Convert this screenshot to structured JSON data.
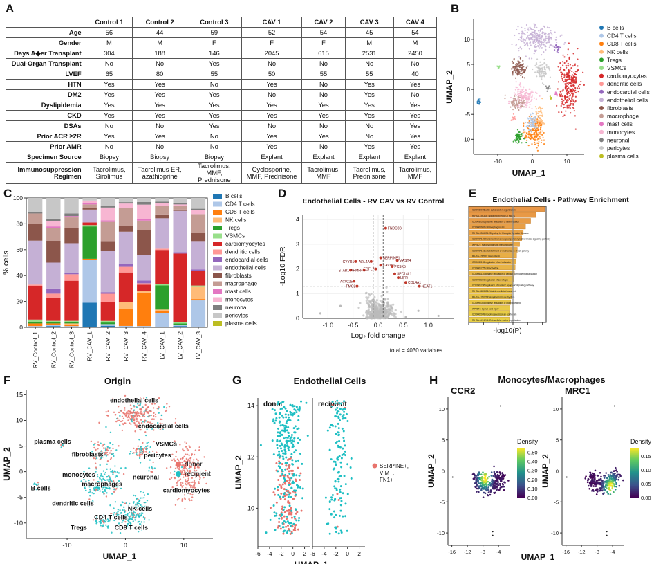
{
  "panels": {
    "A": "A",
    "B": "B",
    "C": "C",
    "D": "D",
    "E": "E",
    "F": "F",
    "G": "G",
    "H": "H"
  },
  "table": {
    "columns": [
      "",
      "Control 1",
      "Control 2",
      "Control 3",
      "CAV 1",
      "CAV 2",
      "CAV 3",
      "CAV 4"
    ],
    "rows": [
      {
        "label": "Age",
        "cells": [
          "56",
          "44",
          "59",
          "52",
          "54",
          "45",
          "54"
        ]
      },
      {
        "label": "Gender",
        "cells": [
          "M",
          "M",
          "F",
          "F",
          "F",
          "M",
          "M"
        ]
      },
      {
        "label": "Days A◆er Transplant",
        "cells": [
          "304",
          "188",
          "146",
          "2045",
          "615",
          "2531",
          "2450"
        ]
      },
      {
        "label": "Dual-Organ Transplant",
        "cells": [
          "No",
          "No",
          "Yes",
          "No",
          "No",
          "No",
          "No"
        ]
      },
      {
        "label": "LVEF",
        "cells": [
          "65",
          "80",
          "55",
          "50",
          "55",
          "55",
          "40"
        ]
      },
      {
        "label": "HTN",
        "cells": [
          "Yes",
          "Yes",
          "No",
          "Yes",
          "No",
          "Yes",
          "Yes"
        ]
      },
      {
        "label": "DM2",
        "cells": [
          "Yes",
          "Yes",
          "Yes",
          "No",
          "No",
          "Yes",
          "No"
        ]
      },
      {
        "label": "Dyslipidemia",
        "cells": [
          "Yes",
          "Yes",
          "Yes",
          "Yes",
          "Yes",
          "Yes",
          "Yes"
        ]
      },
      {
        "label": "CKD",
        "cells": [
          "Yes",
          "Yes",
          "Yes",
          "Yes",
          "Yes",
          "Yes",
          "Yes"
        ]
      },
      {
        "label": "DSAs",
        "cells": [
          "No",
          "No",
          "Yes",
          "No",
          "No",
          "No",
          "Yes"
        ]
      },
      {
        "label": "Prior ACR ≥2R",
        "cells": [
          "Yes",
          "Yes",
          "No",
          "Yes",
          "Yes",
          "No",
          "Yes"
        ]
      },
      {
        "label": "Prior AMR",
        "cells": [
          "No",
          "No",
          "No",
          "Yes",
          "No",
          "Yes",
          "Yes"
        ]
      },
      {
        "label": "Specimen Source",
        "cells": [
          "Biopsy",
          "Biopsy",
          "Biopsy",
          "Explant",
          "Explant",
          "Explant",
          "Explant"
        ]
      },
      {
        "label": "Immunosuppression Regimen",
        "cells": [
          "Tacrolimus, Sirolimus",
          "Tacrolimus ER, azathioprine",
          "Tacrolimus, MMF, Prednisone",
          "Cyclosporine, MMF, Prednisone",
          "Tacrolimus, MMF",
          "Tacrolimus, Prednisone",
          "Tacrolimus, MMF"
        ]
      }
    ]
  },
  "colors": {
    "B cells": "#1f77b4",
    "CD4 T cells": "#aec7e8",
    "CD8 T cells": "#ff7f0e",
    "NK cells": "#ffbb78",
    "Tregs": "#2ca02c",
    "VSMCs": "#98df8a",
    "cardiomyocytes": "#d62728",
    "dendritic cells": "#ff9896",
    "endocardial cells": "#9467bd",
    "endothelial cells": "#c5b0d5",
    "fibroblasts": "#8c564b",
    "macrophage": "#c49c94",
    "mast cells": "#e377c2",
    "monocytes": "#f7b6d2",
    "neuronal": "#7f7f7f",
    "pericytes": "#c7c7c7",
    "plasma cells": "#bcbd22",
    "donor": "#e8736c",
    "recipient": "#1fbfc3"
  },
  "chart_data": [
    {
      "id": "B",
      "type": "scatter",
      "xlabel": "UMAP_1",
      "ylabel": "UMAP_2",
      "xticks": [
        -10,
        0,
        10
      ],
      "yticks": [
        -10,
        -5,
        0,
        5,
        10
      ],
      "xlim": [
        -17,
        15
      ],
      "ylim": [
        -13,
        14
      ],
      "legend": [
        "B cells",
        "CD4 T cells",
        "CD8 T cells",
        "NK cells",
        "Tregs",
        "VSMCs",
        "cardiomyocytes",
        "dendritic cells",
        "endocardial cells",
        "endothelial cells",
        "fibroblasts",
        "macrophage",
        "mast cells",
        "monocytes",
        "neuronal",
        "pericytes",
        "plasma cells"
      ],
      "clusters": [
        {
          "cat": "endothelial cells",
          "x": 1.5,
          "y": 10.2,
          "sx": 2.8,
          "sy": 1.3,
          "n": 260
        },
        {
          "cat": "endocardial cells",
          "x": 7,
          "y": 8.2,
          "sx": 0.4,
          "sy": 0.4,
          "n": 20
        },
        {
          "cat": "fibroblasts",
          "x": -4,
          "y": 4,
          "sx": 1.1,
          "sy": 0.9,
          "n": 90
        },
        {
          "cat": "pericytes",
          "x": 2.5,
          "y": 4,
          "sx": 1.1,
          "sy": 0.9,
          "n": 80
        },
        {
          "cat": "VSMCs",
          "x": -9.8,
          "y": 4.6,
          "sx": 0.2,
          "sy": 0.3,
          "n": 8
        },
        {
          "cat": "cardiomyocytes",
          "x": 10.5,
          "y": 1,
          "sx": 1.4,
          "sy": 2.8,
          "n": 280
        },
        {
          "cat": "monocytes",
          "x": -2.5,
          "y": -1.5,
          "sx": 1.6,
          "sy": 1.2,
          "n": 140
        },
        {
          "cat": "macrophage",
          "x": -4.5,
          "y": -2.8,
          "sx": 1.2,
          "sy": 0.7,
          "n": 80
        },
        {
          "cat": "neuronal",
          "x": 4.5,
          "y": 0.5,
          "sx": 0.3,
          "sy": 0.3,
          "n": 12
        },
        {
          "cat": "mast cells",
          "x": 6.8,
          "y": -0.8,
          "sx": 0.2,
          "sy": 0.2,
          "n": 8
        },
        {
          "cat": "plasma cells",
          "x": 5.5,
          "y": -1.8,
          "sx": 0.2,
          "sy": 0.2,
          "n": 6
        },
        {
          "cat": "B cells",
          "x": -15.5,
          "y": -2.5,
          "sx": 0.3,
          "sy": 0.3,
          "n": 14
        },
        {
          "cat": "NK cells",
          "x": 2.2,
          "y": -6.5,
          "sx": 0.7,
          "sy": 1.5,
          "n": 80
        },
        {
          "cat": "CD8 T cells",
          "x": 0.5,
          "y": -8.5,
          "sx": 1.4,
          "sy": 1.3,
          "n": 150
        },
        {
          "cat": "CD4 T cells",
          "x": -0.3,
          "y": -6.5,
          "sx": 0.8,
          "sy": 0.8,
          "n": 60
        },
        {
          "cat": "Tregs",
          "x": -3.8,
          "y": -9.4,
          "sx": 0.8,
          "sy": 0.6,
          "n": 60
        },
        {
          "cat": "dendritic cells",
          "x": -5.5,
          "y": -5.8,
          "sx": 0.4,
          "sy": 0.3,
          "n": 12
        }
      ]
    },
    {
      "id": "C",
      "type": "bar",
      "stacked": true,
      "ylabel": "% cells",
      "categories": [
        "RV_Control_1",
        "RV_Control_2",
        "RV_Control_3",
        "RV_CAV_1",
        "RV_CAV_2",
        "RV_CAV_3",
        "RV_CAV_4",
        "LV_CAV_1",
        "LV_CAV_2",
        "LV_CAV_3"
      ],
      "ylim": [
        0,
        100
      ],
      "yticks": [
        0,
        20,
        40,
        60,
        80,
        100
      ],
      "series": [
        {
          "name": "B cells",
          "values": [
            0,
            1,
            0,
            19,
            1,
            0,
            0,
            0,
            1,
            0
          ]
        },
        {
          "name": "CD4 T cells",
          "values": [
            1,
            1,
            1,
            33,
            1,
            1,
            1,
            11,
            1,
            20
          ]
        },
        {
          "name": "CD8 T cells",
          "values": [
            2,
            1,
            1,
            1,
            0,
            12,
            25,
            2,
            0,
            1
          ]
        },
        {
          "name": "NK cells",
          "values": [
            0,
            0,
            1,
            0,
            0,
            5,
            1,
            1,
            0,
            9
          ]
        },
        {
          "name": "Tregs",
          "values": [
            1,
            1,
            1,
            25,
            1,
            0,
            0,
            19,
            1,
            0
          ]
        },
        {
          "name": "VSMCs",
          "values": [
            2,
            1,
            1,
            1,
            1,
            0,
            0,
            1,
            1,
            1
          ]
        },
        {
          "name": "cardiomyocytes",
          "values": [
            26,
            18,
            31,
            2,
            12,
            21,
            5,
            27,
            53,
            11
          ]
        },
        {
          "name": "dendritic cells",
          "values": [
            1,
            3,
            5,
            0,
            5,
            4,
            1,
            1,
            0,
            0
          ]
        },
        {
          "name": "endocardial cells",
          "values": [
            0,
            4,
            1,
            0,
            1,
            2,
            2,
            0,
            1,
            1
          ]
        },
        {
          "name": "endothelial cells",
          "values": [
            34,
            20,
            23,
            10,
            26,
            23,
            19,
            24,
            32,
            21
          ]
        },
        {
          "name": "fibroblasts",
          "values": [
            13,
            17,
            12,
            1,
            6,
            4,
            19,
            3,
            1,
            6
          ]
        },
        {
          "name": "macrophage",
          "values": [
            8,
            10,
            8,
            3,
            12,
            13,
            7,
            7,
            3,
            14
          ]
        },
        {
          "name": "mast cells",
          "values": [
            0,
            1,
            1,
            1,
            1,
            0,
            1,
            0,
            0,
            0
          ]
        },
        {
          "name": "monocytes",
          "values": [
            0,
            4,
            0,
            2,
            8,
            3,
            11,
            2,
            1,
            3
          ]
        },
        {
          "name": "neuronal",
          "values": [
            1,
            2,
            2,
            0,
            1,
            1,
            2,
            1,
            1,
            1
          ]
        },
        {
          "name": "pericytes",
          "values": [
            11,
            16,
            12,
            2,
            5,
            3,
            3,
            3,
            4,
            8
          ]
        },
        {
          "name": "plasma cells",
          "values": [
            0,
            0,
            0,
            0,
            0,
            0,
            0,
            0,
            0,
            0
          ]
        }
      ]
    },
    {
      "id": "D",
      "type": "scatter",
      "title": "Endothelial Cells - RV CAV vs RV Control",
      "xlabel": "Log₂ fold change",
      "ylabel": "-Log10 FDR",
      "xlim": [
        -1.5,
        1.5
      ],
      "ylim": [
        0,
        4.2
      ],
      "xticks": [
        -1.0,
        -0.5,
        0.0,
        0.5,
        1.0
      ],
      "yticks": [
        0,
        1,
        2,
        3,
        4
      ],
      "footer": "total = 4030 variables",
      "labels": [
        {
          "text": "FNDC3B",
          "x": 0.15,
          "y": 3.65
        },
        {
          "text": "SERPINE1",
          "x": 0.05,
          "y": 2.45
        },
        {
          "text": "MAST4",
          "x": 0.38,
          "y": 2.35
        },
        {
          "text": "CYYR1",
          "x": -0.45,
          "y": 2.3
        },
        {
          "text": "ARL4A",
          "x": -0.14,
          "y": 2.3
        },
        {
          "text": "CAVIN1",
          "x": 0.05,
          "y": 2.15
        },
        {
          "text": "PCSK5",
          "x": 0.28,
          "y": 2.1
        },
        {
          "text": "STAB1",
          "x": -0.55,
          "y": 1.95
        },
        {
          "text": "ARMH4",
          "x": -0.28,
          "y": 1.95
        },
        {
          "text": "EGFL7",
          "x": -0.05,
          "y": 2.0
        },
        {
          "text": "SEC14L1",
          "x": 0.33,
          "y": 1.8
        },
        {
          "text": "LIFR",
          "x": 0.4,
          "y": 1.65
        },
        {
          "text": "AC0225",
          "x": -0.48,
          "y": 1.5
        },
        {
          "text": "FMO2",
          "x": -0.42,
          "y": 1.3
        },
        {
          "text": "COL4A1",
          "x": 0.55,
          "y": 1.45
        },
        {
          "text": "NEAT1",
          "x": 0.82,
          "y": 1.3
        }
      ]
    },
    {
      "id": "E",
      "type": "bar",
      "orientation": "horizontal",
      "title": "Endothelial Cells - Pathway Enrichment",
      "xlabel": "-log10(P)",
      "xticks": [
        0,
        2,
        4,
        6,
        8,
        10
      ],
      "categories": [
        "GO:0030036 actin cytoskeleton organization",
        "R-HSA-194315: Signaling by Rho GTPases",
        "GO:0030335 positive regulation of cell migration",
        "GO:0000902 cell morphogenesis",
        "R-HSA-9006934: Signaling by Receptor Tyrosine Kinases",
        "GO:0007169 transmembrane receptor protein tyrosine kinase signaling pathway",
        "WP2807: Malignant pleural mesothelioma",
        "GO:0007163 establishment or maintenance of cell polarity",
        "R-HSA-109582: Hemostasis",
        "GO:0030155 regulation of cell adhesion",
        "GO:0001775 cell activation",
        "GO:0051130 positive regulation of cellular component organization",
        "GO:0008360 regulation of cell shape",
        "GO:2001236 regulation of extrinsic apoptotic signaling pathway",
        "R-HSA-5653656: Vesicle-mediated transport",
        "R-HSA-1280218: Adaptive Immune System",
        "GO:0090303 positive regulation of wound healing",
        "WP4146: Spinal cord injury",
        "GO:0002009 morphogenesis of an epithelium",
        "R-HSA-1474244: Extracellular matrix organization"
      ],
      "values": [
        10.3,
        9.1,
        8.4,
        7.7,
        7.4,
        7.2,
        6.9,
        6.6,
        6.5,
        6.4,
        6.3,
        6.2,
        6.1,
        6.0,
        5.9,
        5.8,
        5.7,
        5.6,
        5.5,
        5.5
      ]
    },
    {
      "id": "F",
      "type": "scatter",
      "title": "Origin",
      "xlabel": "UMAP_1",
      "ylabel": "UMAP_2",
      "xticks": [
        -10,
        0,
        10
      ],
      "yticks": [
        -10,
        -5,
        0,
        5,
        10,
        15
      ],
      "xlim": [
        -17,
        15
      ],
      "ylim": [
        -13,
        16
      ],
      "legend": [
        "donor",
        "recipient"
      ],
      "cluster_labels": [
        {
          "text": "endothelial cells",
          "x": 1.5,
          "y": 13.5
        },
        {
          "text": "endocardial cells",
          "x": 6.5,
          "y": 8.5
        },
        {
          "text": "plasma cells",
          "x": -12.5,
          "y": 5.5
        },
        {
          "text": "VSMCs",
          "x": 7,
          "y": 5
        },
        {
          "text": "fibroblasts",
          "x": -6.5,
          "y": 3
        },
        {
          "text": "pericytes",
          "x": 5.5,
          "y": 2.8
        },
        {
          "text": "neuronal",
          "x": 3.5,
          "y": -1.5
        },
        {
          "text": "monocytes",
          "x": -8,
          "y": -1
        },
        {
          "text": "macrophages",
          "x": -4,
          "y": -2.8
        },
        {
          "text": "B cells",
          "x": -14.5,
          "y": -3.6
        },
        {
          "text": "cardiomyocytes",
          "x": 10.5,
          "y": -4
        },
        {
          "text": "dendritic cells",
          "x": -9,
          "y": -6.6
        },
        {
          "text": "NK cells",
          "x": 2.5,
          "y": -7.6
        },
        {
          "text": "CD4 T cells",
          "x": -2.5,
          "y": -9.3
        },
        {
          "text": "Tregs",
          "x": -8,
          "y": -11.3
        },
        {
          "text": "CD8 T cells",
          "x": 1,
          "y": -11.3
        }
      ]
    },
    {
      "id": "G",
      "type": "scatter",
      "title": "Endothelial Cells",
      "ylabel": "UMAP_2",
      "xlabel": "UMAP_1",
      "facets": [
        "donor",
        "recipient"
      ],
      "xticks_left": [
        -6,
        -4,
        -2,
        0,
        2
      ],
      "xticks_right": [
        -6,
        -4,
        -2,
        0,
        2
      ],
      "yticks": [
        10,
        12,
        14
      ],
      "legend": "SERPINE+, VIM+, FN1+"
    },
    {
      "id": "H",
      "type": "scatter",
      "title": "Monocytes/Macrophages",
      "facets": [
        "CCR2",
        "MRC1"
      ],
      "xlabel": "UMAP_1",
      "ylabel": "UMAP_2",
      "xticks": [
        -16,
        -12,
        -8,
        -4
      ],
      "yticks": [
        -10,
        -5,
        0,
        5,
        10
      ],
      "legend_title": "Density",
      "ccr2_ticks": [
        0.0,
        0.1,
        0.2,
        0.3,
        0.4,
        0.5
      ],
      "mrc1_ticks": [
        0.0,
        0.05,
        0.1,
        0.15
      ]
    }
  ]
}
